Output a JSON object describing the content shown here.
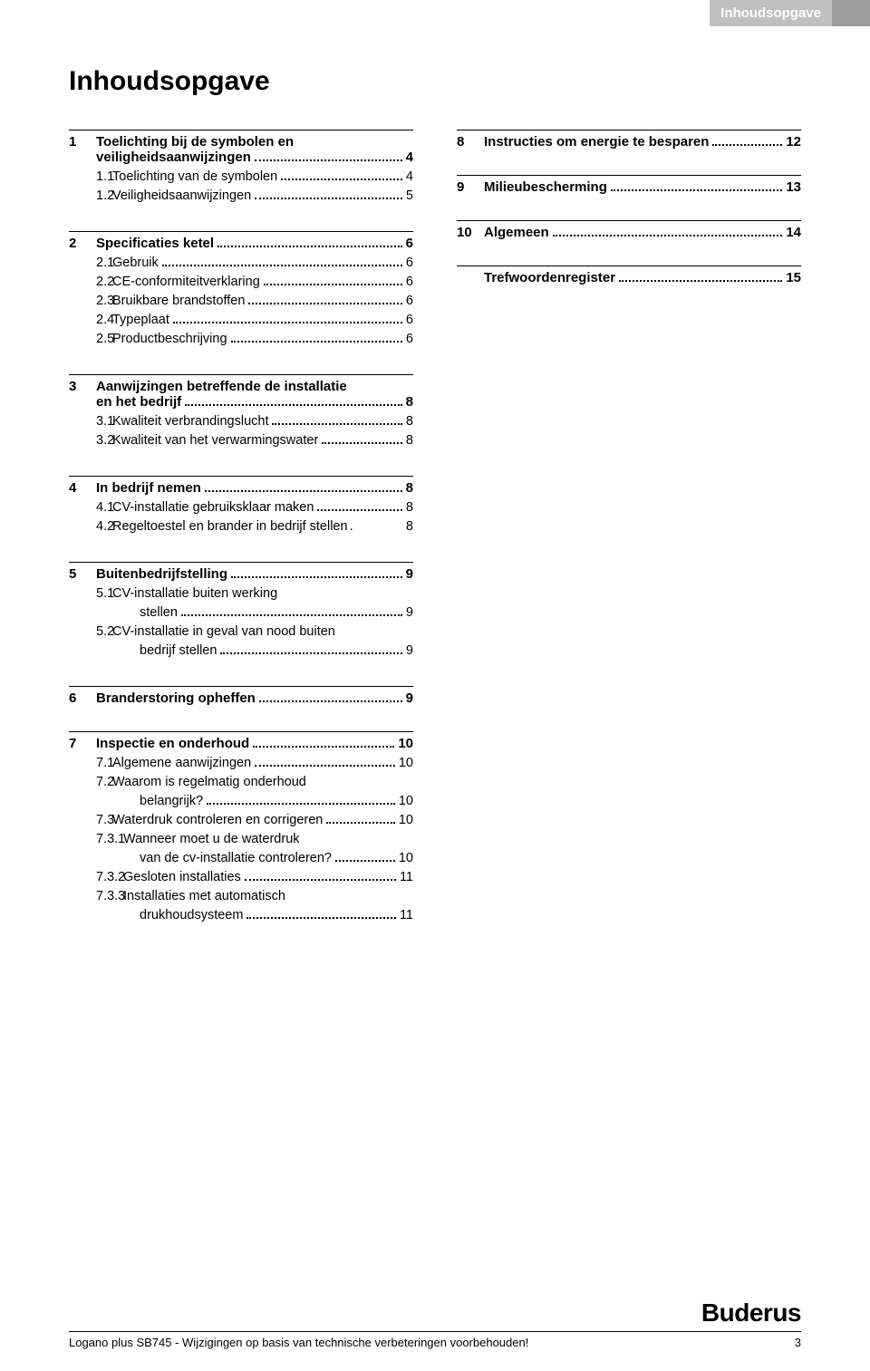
{
  "header_tab": "Inhoudsopgave",
  "main_title": "Inhoudsopgave",
  "left_sections": [
    {
      "num": "1",
      "title": "Toelichting bij de symbolen en",
      "title2": "veiligheidsaanwijzingen",
      "page": "4",
      "entries": [
        {
          "num": "1.1",
          "label": "Toelichting van de symbolen",
          "page": "4"
        },
        {
          "num": "1.2",
          "label": "Veiligheidsaanwijzingen",
          "page": "5"
        }
      ]
    },
    {
      "num": "2",
      "title": "Specificaties ketel",
      "page": "6",
      "entries": [
        {
          "num": "2.1",
          "label": "Gebruik",
          "page": "6"
        },
        {
          "num": "2.2",
          "label": "CE-conformiteitverklaring",
          "page": "6"
        },
        {
          "num": "2.3",
          "label": "Bruikbare brandstoffen",
          "page": "6"
        },
        {
          "num": "2.4",
          "label": "Typeplaat",
          "page": "6"
        },
        {
          "num": "2.5",
          "label": "Productbeschrijving",
          "page": "6"
        }
      ]
    },
    {
      "num": "3",
      "title": "Aanwijzingen betreffende de installatie",
      "title2": "en het bedrijf",
      "page": "8",
      "entries": [
        {
          "num": "3.1",
          "label": "Kwaliteit verbrandingslucht",
          "page": "8"
        },
        {
          "num": "3.2",
          "label": "Kwaliteit van het verwarmingswater",
          "page": "8"
        }
      ]
    },
    {
      "num": "4",
      "title": "In bedrijf nemen",
      "page": "8",
      "entries": [
        {
          "num": "4.1",
          "label": "CV-installatie gebruiksklaar maken",
          "page": "8"
        },
        {
          "num": "4.2",
          "label": "Regeltoestel en brander in bedrijf stellen",
          "page": "8",
          "tight": true
        }
      ]
    },
    {
      "num": "5",
      "title": "Buitenbedrijfstelling",
      "page": "9",
      "entries": [
        {
          "num": "5.1",
          "label": "CV-installatie buiten werking",
          "label2": "stellen",
          "page": "9"
        },
        {
          "num": "5.2",
          "label": "CV-installatie in geval van nood buiten",
          "label2": "bedrijf stellen",
          "page": "9"
        }
      ]
    },
    {
      "num": "6",
      "title": "Branderstoring opheffen",
      "page": "9",
      "entries": []
    },
    {
      "num": "7",
      "title": "Inspectie en onderhoud",
      "page": "10",
      "entries": [
        {
          "num": "7.1",
          "label": "Algemene aanwijzingen",
          "page": "10"
        },
        {
          "num": "7.2",
          "label": "Waarom is regelmatig onderhoud",
          "label2": "belangrijk?",
          "page": "10"
        },
        {
          "num": "7.3",
          "label": "Waterdruk controleren en corrigeren",
          "page": "10"
        },
        {
          "num": "7.3.1",
          "label": "Wanneer moet u de waterdruk",
          "label2": "van de cv-installatie controleren?",
          "page": "10",
          "sub": true
        },
        {
          "num": "7.3.2",
          "label": "Gesloten installaties",
          "page": "11",
          "sub": true
        },
        {
          "num": "7.3.3",
          "label": "Installaties met automatisch",
          "label2": "drukhoudsysteem",
          "page": "11",
          "sub": true
        }
      ]
    }
  ],
  "right_sections": [
    {
      "num": "8",
      "title": "Instructies om energie te besparen",
      "page": "12",
      "entries": []
    },
    {
      "num": "9",
      "title": "Milieubescherming",
      "page": "13",
      "entries": []
    },
    {
      "num": "10",
      "title": "Algemeen",
      "page": "14",
      "entries": []
    },
    {
      "num": "",
      "title": "Trefwoordenregister",
      "page": "15",
      "entries": []
    }
  ],
  "footer_text": "Logano plus SB745 - Wijzigingen op basis van technische verbeteringen voorbehouden!",
  "footer_page": "3",
  "brand": "Buderus"
}
